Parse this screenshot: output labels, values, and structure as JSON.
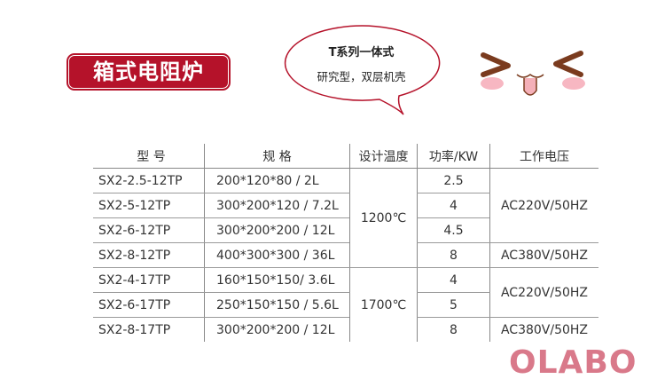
{
  "title": "箱式电阻炉",
  "bubble": {
    "line1": "T系列一体式",
    "line2": "研究型，双层机壳"
  },
  "table": {
    "headers": [
      "型 号",
      "规 格",
      "设计温度",
      "功率/KW",
      "工作电压"
    ],
    "rows": [
      {
        "model": "SX2-2.5-12TP",
        "spec": "200*120*80 / 2L",
        "power": "2.5"
      },
      {
        "model": "SX2-5-12TP",
        "spec": "300*200*120 / 7.2L",
        "power": "4"
      },
      {
        "model": "SX2-6-12TP",
        "spec": "300*200*200 / 12L",
        "power": "4.5"
      },
      {
        "model": "SX2-8-12TP",
        "spec": "400*300*300 / 36L",
        "power": "8"
      },
      {
        "model": "SX2-4-17TP",
        "spec": "160*150*150/ 3.6L",
        "power": "4"
      },
      {
        "model": "SX2-6-17TP",
        "spec": "250*150*150 / 5.6L",
        "power": "5"
      },
      {
        "model": "SX2-8-17TP",
        "spec": "300*200*200 / 12L",
        "power": "8"
      }
    ],
    "temps": [
      "1200℃",
      "1700℃"
    ],
    "voltages": [
      "AC220V/50HZ",
      "AC380V/50HZ",
      "AC220V/50HZ",
      "AC380V/50HZ"
    ]
  },
  "logo": "OLABO",
  "colors": {
    "brand": "#b5122a",
    "logo": "#d9798a"
  }
}
